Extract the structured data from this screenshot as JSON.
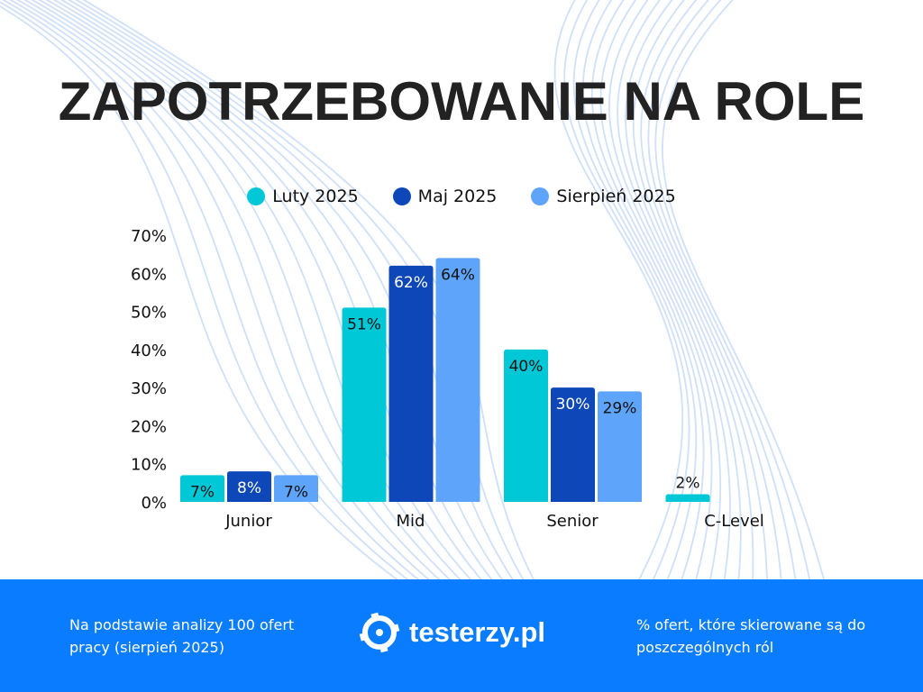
{
  "title": "ZAPOTRZEBOWANIE NA ROLE",
  "colors": {
    "luty": "#00c8d7",
    "maj": "#0d47b8",
    "sierpien": "#5ea4fa",
    "footer": "#0a7cff"
  },
  "chart_data": {
    "type": "bar",
    "title": "ZAPOTRZEBOWANIE NA ROLE",
    "categories": [
      "Junior",
      "Mid",
      "Senior",
      "C-Level"
    ],
    "series": [
      {
        "name": "Luty 2025",
        "values": [
          7,
          51,
          40,
          2
        ]
      },
      {
        "name": "Maj 2025",
        "values": [
          8,
          62,
          30,
          null
        ]
      },
      {
        "name": "Sierpień 2025",
        "values": [
          7,
          64,
          29,
          null
        ]
      }
    ],
    "ylim": [
      0,
      70
    ],
    "yticks": [
      "0%",
      "10%",
      "20%",
      "30%",
      "40%",
      "50%",
      "60%",
      "70%"
    ],
    "grid": false,
    "legend": "top",
    "value_suffix": "%"
  },
  "footer": {
    "left": "Na podstawie analizy 100 ofert pracy (sierpień 2025)",
    "logo": "testerzy.pl",
    "right": "% ofert, które skierowane są do poszczególnych ról"
  }
}
